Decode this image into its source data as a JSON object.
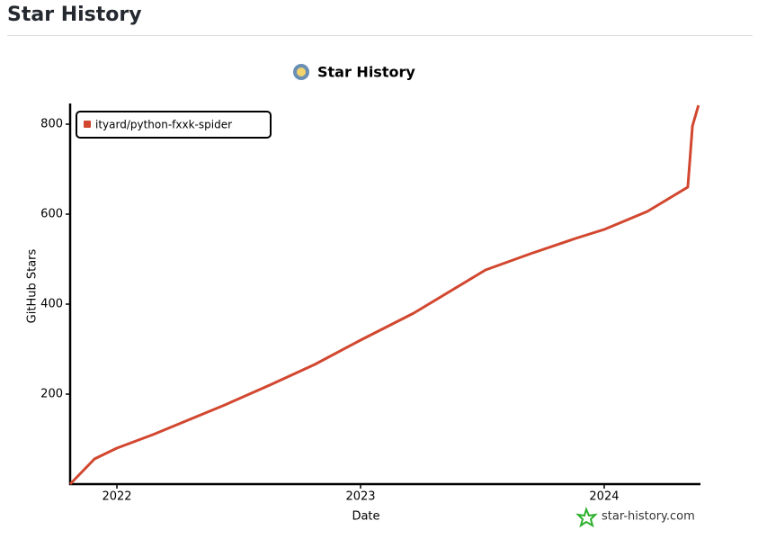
{
  "page_title": "Star History",
  "chart_data": {
    "type": "line",
    "title": "Star History",
    "x_label": "Date",
    "y_label": "GitHub Stars",
    "watermark": "star-history.com",
    "xlim": [
      2021.808,
      2024.395
    ],
    "xticks": [
      2022,
      2023,
      2024
    ],
    "ylim": [
      0,
      846
    ],
    "yticks": [
      200,
      400,
      600,
      800
    ],
    "legend": "top-left",
    "series": [
      {
        "name": "ityard/python-fxxk-spider",
        "color": "#d2472f",
        "x": [
          2021.808,
          2021.908,
          2022.0,
          2022.148,
          2022.443,
          2022.627,
          2022.812,
          2023.0,
          2023.218,
          2023.513,
          2023.697,
          2023.882,
          2024.0,
          2024.177,
          2024.343,
          2024.351,
          2024.362,
          2024.387
        ],
        "values": [
          0,
          56,
          80,
          110,
          176,
          220,
          266,
          320,
          380,
          476,
          512,
          546,
          566,
          606,
          660,
          716,
          796,
          842
        ]
      }
    ]
  }
}
